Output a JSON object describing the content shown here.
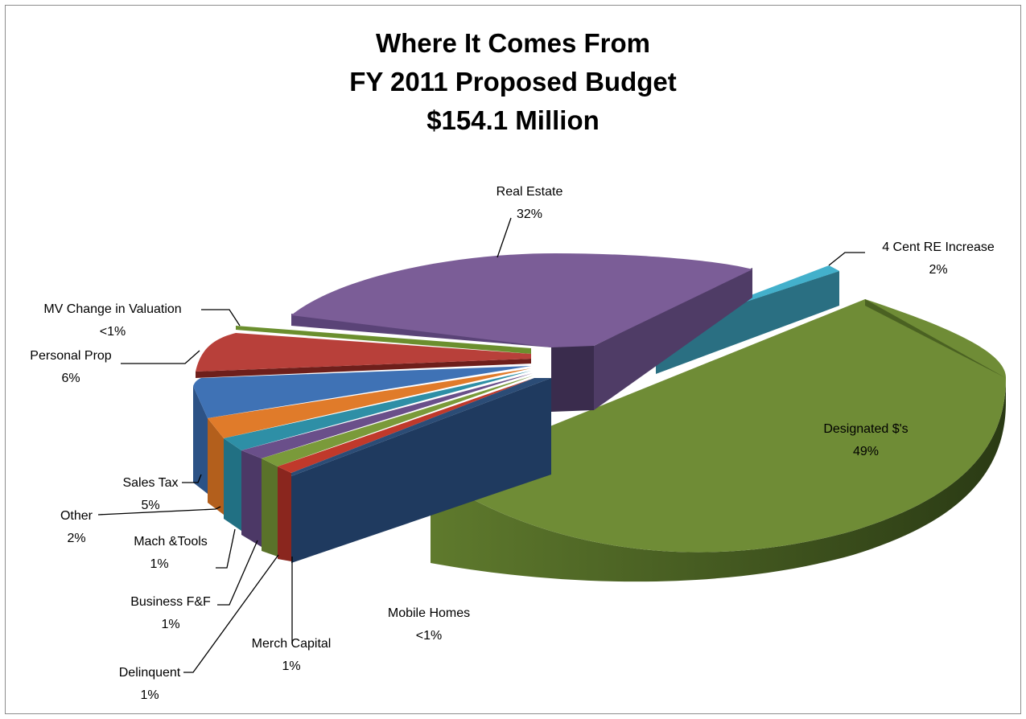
{
  "chart_data": {
    "type": "pie",
    "title_lines": [
      "Where It Comes From",
      "FY 2011 Proposed Budget",
      "$154.1 Million"
    ],
    "slices": [
      {
        "label": "Real Estate",
        "pct_label": "32%",
        "value": 32,
        "color": "#7b5d97"
      },
      {
        "label": "4 Cent RE Increase",
        "pct_label": "2%",
        "value": 2,
        "color": "#3ba3be"
      },
      {
        "label": "Designated $'s",
        "pct_label": "49%",
        "value": 49,
        "color": "#6f8c36"
      },
      {
        "label": "Mobile Homes",
        "pct_label": "<1%",
        "value": 0.5,
        "color": "#1f3a5f"
      },
      {
        "label": "Merch Capital",
        "pct_label": "1%",
        "value": 1,
        "color": "#c0392b"
      },
      {
        "label": "Delinquent",
        "pct_label": "1%",
        "value": 1,
        "color": "#7a9a3a"
      },
      {
        "label": "Business F&F",
        "pct_label": "1%",
        "value": 1,
        "color": "#6a4f8a"
      },
      {
        "label": "Mach &Tools",
        "pct_label": "1%",
        "value": 1,
        "color": "#2e8fa6"
      },
      {
        "label": "Other",
        "pct_label": "2%",
        "value": 2,
        "color": "#e07b2a"
      },
      {
        "label": "Sales Tax",
        "pct_label": "5%",
        "value": 5,
        "color": "#3f72b5"
      },
      {
        "label": "Personal Prop",
        "pct_label": "6%",
        "value": 6,
        "color": "#b8403a"
      },
      {
        "label": "MV Change in Valuation",
        "pct_label": "<1%",
        "value": 0.5,
        "color": "#6b8f2e"
      }
    ]
  }
}
